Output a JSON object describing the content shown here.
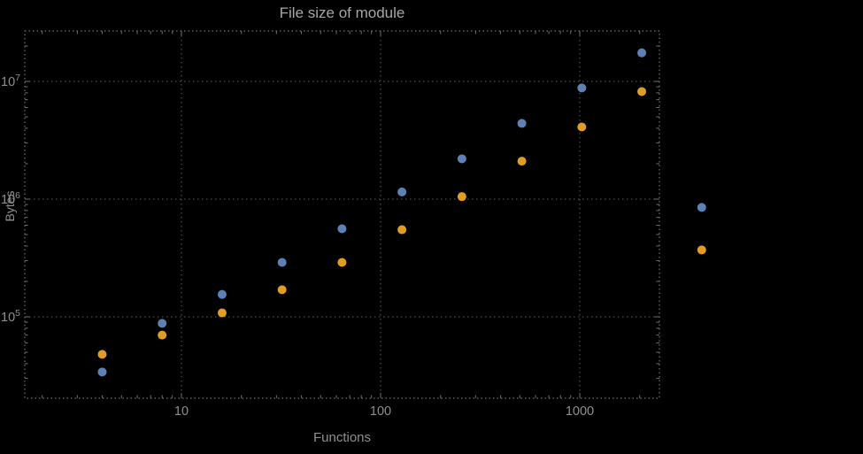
{
  "chart_data": {
    "type": "scatter",
    "title": "File size of module",
    "xlabel": "Functions",
    "ylabel": "Bytes",
    "xscale": "log",
    "yscale": "log",
    "grid": true,
    "legend": "none",
    "xlim": [
      1.6,
      2500
    ],
    "ylim": [
      20000,
      27000000
    ],
    "x": [
      4,
      8,
      16,
      32,
      64,
      128,
      256,
      512,
      1024,
      2048,
      4096
    ],
    "series": [
      {
        "name": "blue",
        "color": "#5e81b5",
        "values": [
          34000,
          88000,
          155000,
          290000,
          560000,
          1150000,
          2200000,
          4400000,
          8800000,
          17500000,
          850000
        ]
      },
      {
        "name": "orange",
        "color": "#e19c24",
        "values": [
          48000,
          70000,
          108000,
          170000,
          290000,
          550000,
          1050000,
          2100000,
          4100000,
          8200000,
          370000
        ]
      }
    ],
    "x_ticks": [
      10,
      100,
      1000
    ],
    "x_tick_labels": [
      "10",
      "100",
      "1000"
    ],
    "y_ticks": [
      100000,
      1000000,
      10000000
    ],
    "y_tick_labels": [
      "10^5",
      "10^6",
      "10^7"
    ]
  },
  "colors": {
    "background": "#000000",
    "text": "#8f8f8f",
    "title": "#a6a6a6",
    "grid": "#5d5d5d",
    "frame": "#6f6f6f",
    "series_blue": "#5e81b5",
    "series_orange": "#e19c24"
  }
}
